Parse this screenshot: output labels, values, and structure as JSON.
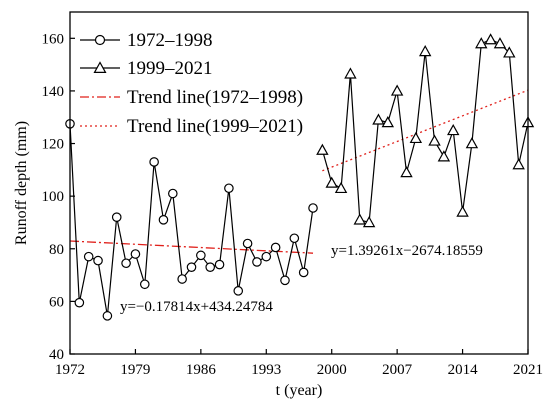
{
  "chart_data": {
    "type": "line",
    "xlabel": "t (year)",
    "ylabel": "Runoff depth (mm)",
    "xlim": [
      1972,
      2021
    ],
    "ylim": [
      40,
      170
    ],
    "xticks": [
      "1972",
      "1979",
      "1986",
      "1993",
      "2000",
      "2007",
      "2014",
      "2021"
    ],
    "yticks": [
      "40",
      "60",
      "80",
      "100",
      "120",
      "140",
      "160"
    ],
    "grid": false,
    "legend_position": "top-left",
    "series": [
      {
        "name": "1972–1998",
        "marker": "circle",
        "color": "#000000",
        "x": [
          1972,
          1973,
          1974,
          1975,
          1976,
          1977,
          1978,
          1979,
          1980,
          1981,
          1982,
          1983,
          1984,
          1985,
          1986,
          1987,
          1988,
          1989,
          1990,
          1991,
          1992,
          1993,
          1994,
          1995,
          1996,
          1997,
          1998
        ],
        "y": [
          127.5,
          59.5,
          77,
          75.5,
          54.5,
          92,
          74.5,
          78,
          66.5,
          113,
          91,
          101,
          68.5,
          73,
          77.5,
          73,
          74,
          103,
          64,
          82,
          75,
          77,
          80.5,
          68,
          84,
          71,
          95.5
        ]
      },
      {
        "name": "1999–2021",
        "marker": "triangle",
        "color": "#000000",
        "x": [
          1999,
          2000,
          2001,
          2002,
          2003,
          2004,
          2005,
          2006,
          2007,
          2008,
          2009,
          2010,
          2011,
          2012,
          2013,
          2014,
          2015,
          2016,
          2017,
          2018,
          2019,
          2020,
          2021
        ],
        "y": [
          117.5,
          105,
          103,
          146.5,
          91,
          90,
          129,
          128,
          140,
          109,
          122,
          155,
          121,
          115,
          125,
          94,
          120,
          158,
          159.5,
          158,
          154.5,
          112,
          128
        ]
      }
    ],
    "trend_lines": [
      {
        "name": "Trend line(1972–1998)",
        "style": "dash-dot",
        "color": "#e0201b",
        "x": [
          1972,
          1998
        ],
        "slope": -0.17814,
        "intercept": 434.24784
      },
      {
        "name": "Trend line(1999–2021)",
        "style": "dotted",
        "color": "#e0201b",
        "x": [
          1999,
          2021
        ],
        "slope": 1.39261,
        "intercept": -2674.18559
      }
    ],
    "annotations": [
      {
        "id": "eq1",
        "text": "y=−0.17814x+434.24784"
      },
      {
        "id": "eq2",
        "text": "y=1.39261x−2674.18559"
      }
    ]
  }
}
